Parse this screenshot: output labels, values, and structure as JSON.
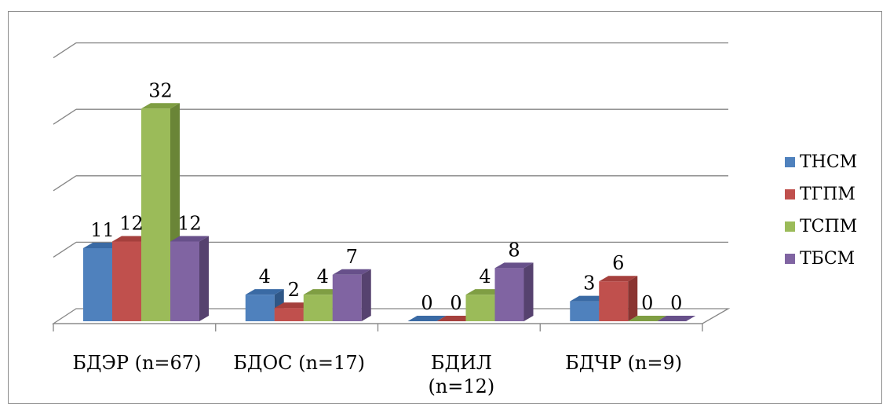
{
  "chart_data": {
    "type": "bar",
    "title": "",
    "xlabel": "",
    "ylabel": "",
    "ylim": [
      0,
      35
    ],
    "grid": true,
    "legend_position": "right",
    "categories": [
      [
        "БДЭР (n=67)"
      ],
      [
        "БДОС (n=17)"
      ],
      [
        "БДИЛ",
        "(n=12)"
      ],
      [
        "БДЧР (n=9)"
      ]
    ],
    "series": [
      {
        "name": "ТНСМ",
        "values": [
          11,
          4,
          0,
          3
        ]
      },
      {
        "name": "ТГПМ",
        "values": [
          12,
          2,
          0,
          6
        ]
      },
      {
        "name": "ТСПМ",
        "values": [
          32,
          4,
          4,
          0
        ]
      },
      {
        "name": "ТБСМ",
        "values": [
          12,
          7,
          8,
          0
        ]
      }
    ],
    "colors": {
      "ТНСМ": {
        "front": "#4f81bd",
        "top": "#3a6aa4",
        "side": "#2f5787"
      },
      "ТГПМ": {
        "front": "#c0504d",
        "top": "#a5403d",
        "side": "#8a3431"
      },
      "ТСПМ": {
        "front": "#9bbb59",
        "top": "#7f9e43",
        "side": "#6a8537"
      },
      "ТБСМ": {
        "front": "#8064a2",
        "top": "#67508a",
        "side": "#56426f"
      }
    }
  },
  "legend": {
    "items": [
      "ТНСМ",
      "ТГПМ",
      "ТСПМ",
      "ТБСМ"
    ]
  }
}
